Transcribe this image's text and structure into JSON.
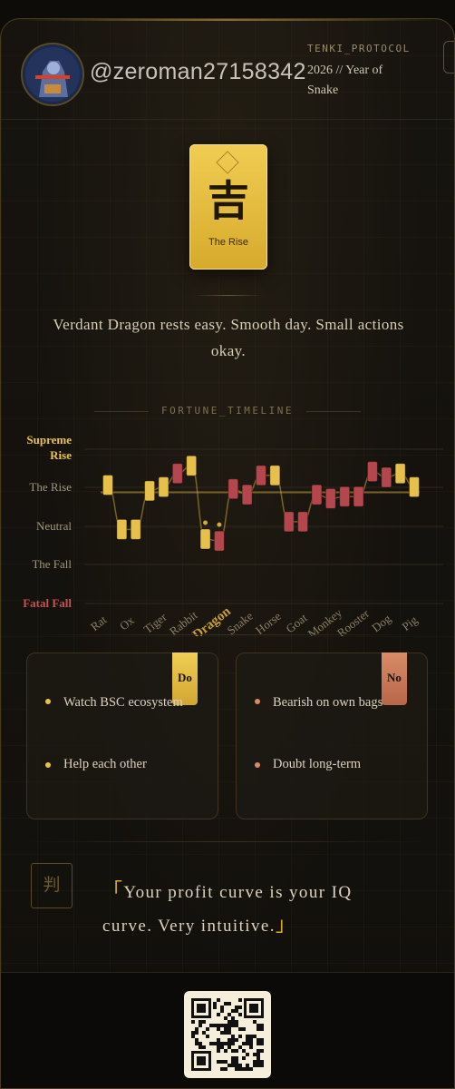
{
  "header": {
    "handle": "@zeroman27158342",
    "protocol": "TENKI_PROTOCOL",
    "year_line": "2026 // Year of Snake"
  },
  "talisman": {
    "kanji": "吉",
    "label": "The Rise"
  },
  "summary": "Verdant Dragon rests easy. Smooth day. Small actions okay.",
  "chart_title": "FORTUNE_TIMELINE",
  "chart_data": {
    "type": "line",
    "title": "FORTUNE_TIMELINE",
    "levels": [
      "Supreme Rise",
      "The Rise",
      "Neutral",
      "The Fall",
      "Fatal Fall"
    ],
    "categories": [
      "Rat",
      "Ox",
      "Tiger",
      "Rabbit",
      "Dragon",
      "Snake",
      "Horse",
      "Goat",
      "Monkey",
      "Rooster",
      "Dog",
      "Pig"
    ],
    "highlight_category": "Dragon",
    "grid": true,
    "markers": [
      {
        "category": "Rat",
        "value": 1.0,
        "tone": "gold"
      },
      {
        "category": "Ox",
        "value": -0.15,
        "tone": "gold"
      },
      {
        "category": "Ox",
        "value": -0.15,
        "tone": "gold"
      },
      {
        "category": "Tiger",
        "value": 0.85,
        "tone": "gold"
      },
      {
        "category": "Tiger",
        "value": 0.95,
        "tone": "gold"
      },
      {
        "category": "Rabbit",
        "value": 1.3,
        "tone": "red"
      },
      {
        "category": "Rabbit",
        "value": 1.5,
        "tone": "gold"
      },
      {
        "category": "Dragon",
        "value": -0.4,
        "tone": "gold"
      },
      {
        "category": "Dragon",
        "value": -0.45,
        "tone": "red"
      },
      {
        "category": "Snake",
        "value": 0.9,
        "tone": "red"
      },
      {
        "category": "Snake",
        "value": 0.75,
        "tone": "red"
      },
      {
        "category": "Horse",
        "value": 1.25,
        "tone": "red"
      },
      {
        "category": "Horse",
        "value": 1.25,
        "tone": "gold"
      },
      {
        "category": "Goat",
        "value": 0.05,
        "tone": "red"
      },
      {
        "category": "Goat",
        "value": 0.05,
        "tone": "red"
      },
      {
        "category": "Monkey",
        "value": 0.75,
        "tone": "red"
      },
      {
        "category": "Monkey",
        "value": 0.65,
        "tone": "red"
      },
      {
        "category": "Rooster",
        "value": 0.7,
        "tone": "red"
      },
      {
        "category": "Rooster",
        "value": 0.7,
        "tone": "red"
      },
      {
        "category": "Dog",
        "value": 1.35,
        "tone": "red"
      },
      {
        "category": "Dog",
        "value": 1.2,
        "tone": "red"
      },
      {
        "category": "Pig",
        "value": 1.3,
        "tone": "gold"
      },
      {
        "category": "Pig",
        "value": 0.95,
        "tone": "gold"
      }
    ],
    "baseline": 1.0,
    "colors": {
      "gold": "#e6c04a",
      "red": "#b4474e",
      "fatal": "#c55252",
      "supreme": "#e9c24a",
      "axis_label": "#a2977f"
    }
  },
  "do": {
    "tag": "Do",
    "items": [
      "Watch BSC ecosystem",
      "Help each other"
    ]
  },
  "no": {
    "tag": "No",
    "items": [
      "Bearish on own bags",
      "Doubt long-term"
    ]
  },
  "verdict": {
    "icon_char": "判",
    "open_mark": "「",
    "text": "Your profit curve is your IQ curve. Very intuitive.",
    "close_mark": "」"
  }
}
